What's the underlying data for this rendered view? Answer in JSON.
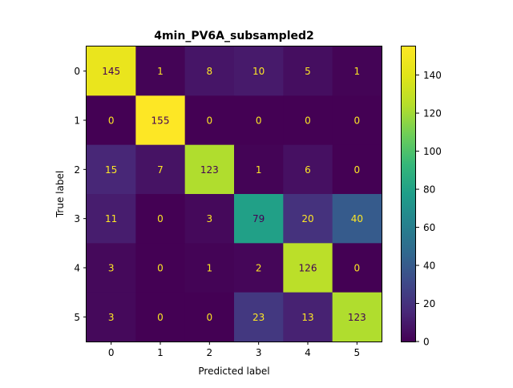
{
  "chart_data": {
    "type": "heatmap",
    "title": "4min_PV6A_subsampled2",
    "xlabel": "Predicted label",
    "ylabel": "True label",
    "x_ticks": [
      "0",
      "1",
      "2",
      "3",
      "4",
      "5"
    ],
    "y_ticks": [
      "0",
      "1",
      "2",
      "3",
      "4",
      "5"
    ],
    "matrix": [
      [
        145,
        1,
        8,
        10,
        5,
        1
      ],
      [
        0,
        155,
        0,
        0,
        0,
        0
      ],
      [
        15,
        7,
        123,
        1,
        6,
        0
      ],
      [
        11,
        0,
        3,
        79,
        20,
        40
      ],
      [
        3,
        0,
        1,
        2,
        126,
        0
      ],
      [
        3,
        0,
        0,
        23,
        13,
        123
      ]
    ],
    "colorbar": {
      "colormap": "viridis",
      "range": [
        0,
        155
      ],
      "ticks": [
        "0",
        "20",
        "40",
        "60",
        "80",
        "100",
        "120",
        "140"
      ]
    },
    "text_colors": {
      "light": "#fde725",
      "dark": "#440154"
    }
  }
}
